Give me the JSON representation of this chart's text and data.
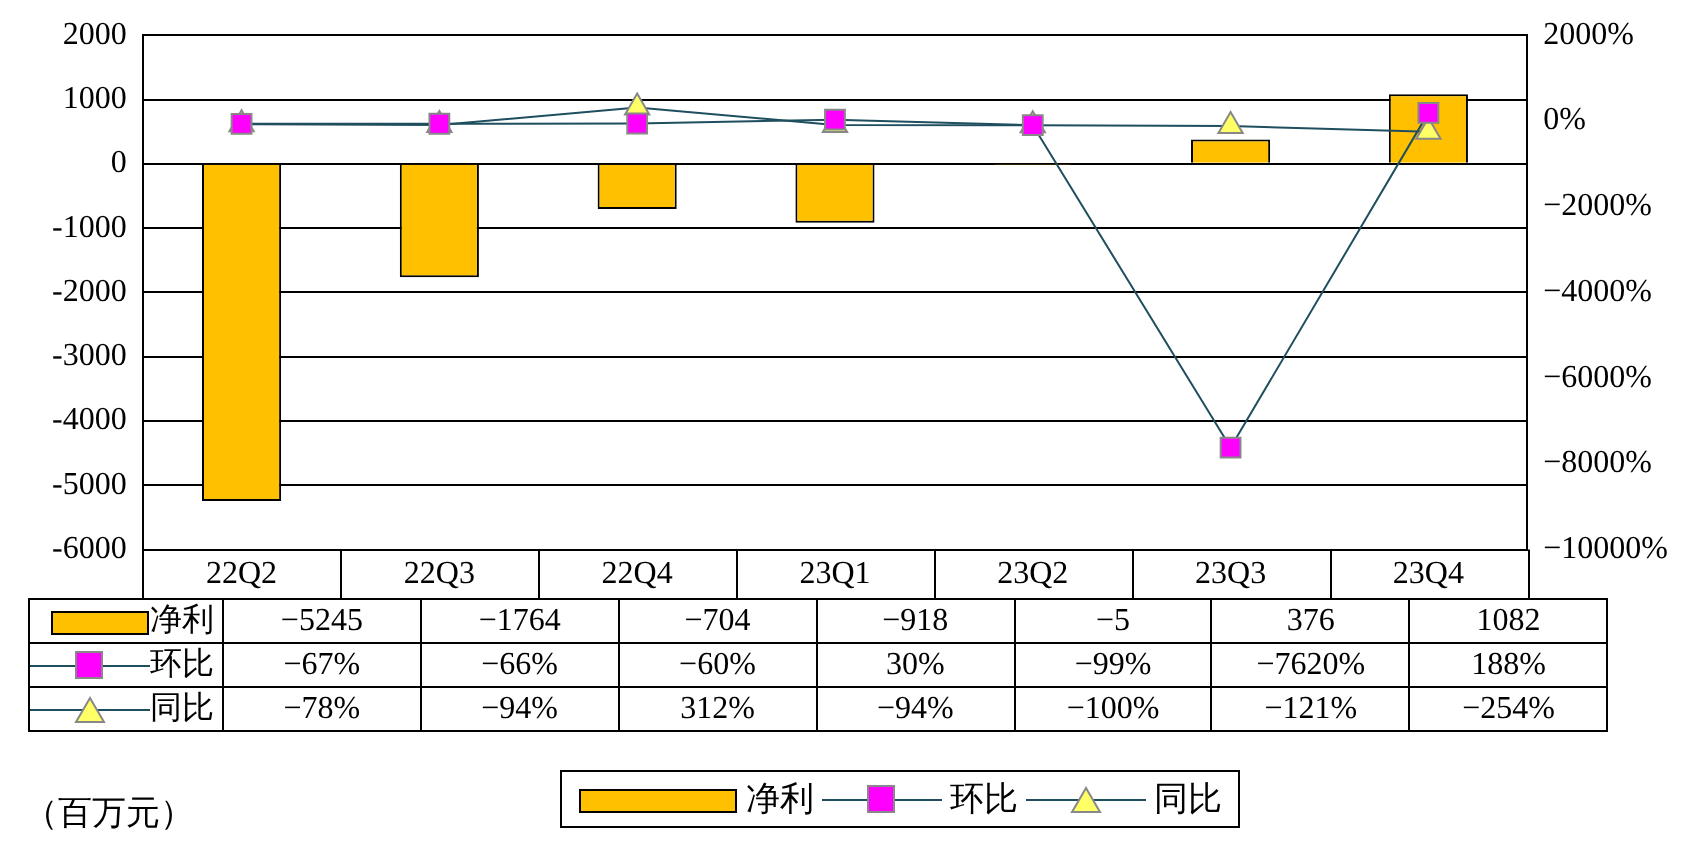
{
  "chart_data": {
    "type": "bar",
    "categories": [
      "22Q2",
      "22Q3",
      "22Q4",
      "23Q1",
      "23Q2",
      "23Q3",
      "23Q4"
    ],
    "series": [
      {
        "name": "净利",
        "color": "#ffc000",
        "values": [
          -5245,
          -1764,
          -704,
          -918,
          -5,
          376,
          1082
        ],
        "value_labels": [
          "−5245",
          "−1764",
          "−704",
          "−918",
          "−5",
          "376",
          "1082"
        ]
      },
      {
        "name": "环比",
        "type": "line",
        "axis": "y2",
        "marker": "square",
        "color": "#ff00ff",
        "values": [
          -67,
          -66,
          -60,
          30,
          -99,
          -7620,
          188
        ],
        "value_labels": [
          "−67%",
          "−66%",
          "−60%",
          "30%",
          "−99%",
          "−7620%",
          "188%"
        ]
      },
      {
        "name": "同比",
        "type": "line",
        "axis": "y2",
        "marker": "triangle",
        "color": "#ffff66",
        "values": [
          -78,
          -94,
          312,
          -94,
          -100,
          -121,
          -254
        ],
        "value_labels": [
          "−78%",
          "−94%",
          "312%",
          "−94%",
          "−100%",
          "−121%",
          "−254%"
        ]
      }
    ],
    "ylim": [
      -6000,
      2000
    ],
    "yticks": [
      -6000,
      -5000,
      -4000,
      -3000,
      -2000,
      -1000,
      0,
      1000,
      2000
    ],
    "y2lim": [
      -10000,
      2000
    ],
    "y2ticks": [
      {
        "value": -10000,
        "label": "−10000%"
      },
      {
        "value": -8000,
        "label": "−8000%"
      },
      {
        "value": -6000,
        "label": "−6000%"
      },
      {
        "value": -4000,
        "label": "−4000%"
      },
      {
        "value": -2000,
        "label": "−2000%"
      },
      {
        "value": 0,
        "label": "0%"
      },
      {
        "value": 2000,
        "label": "2000%"
      }
    ],
    "grid": "y",
    "legend": "bottom",
    "annotations": [
      "（百万元）"
    ]
  }
}
